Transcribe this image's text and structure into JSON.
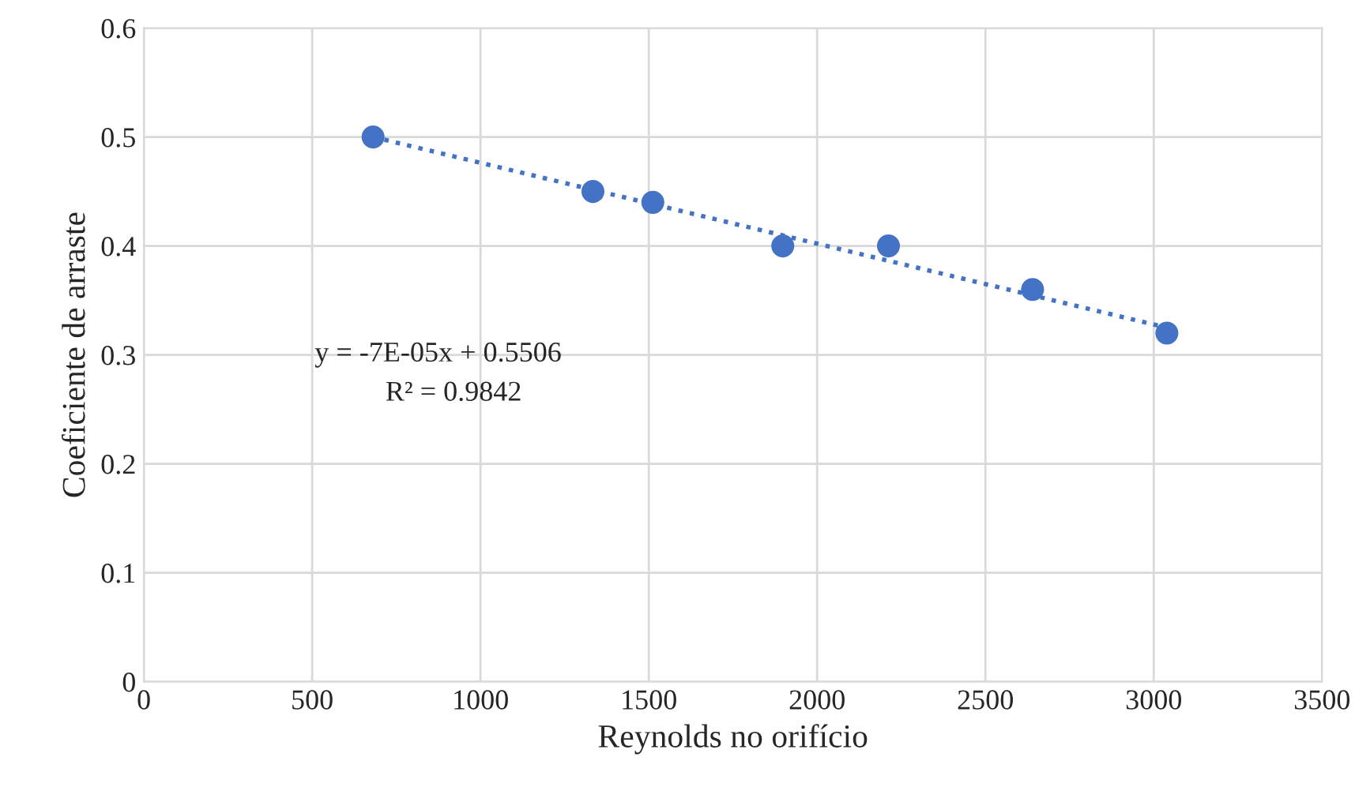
{
  "chart_data": {
    "type": "scatter",
    "xlabel": "Reynolds no orifício",
    "ylabel": "Coeficiente de arraste",
    "series": [
      {
        "color": "#4472c4",
        "marker": "circle",
        "x": [
          681,
          1334,
          1512,
          1898,
          2212,
          2640,
          3039
        ],
        "values": [
          0.5,
          0.45,
          0.44,
          0.4,
          0.4,
          0.36,
          0.32
        ]
      },
      {
        "type": "line",
        "color": "#4472c4",
        "line_style": "dotted",
        "x": [
          681,
          3039
        ],
        "values": [
          0.5,
          0.325
        ]
      }
    ],
    "annotations": [
      "y = -7E-05x + 0.5506",
      "R² = 0.9842"
    ],
    "xlim": [
      0,
      3500
    ],
    "xticks": [
      0,
      500,
      1000,
      1500,
      2000,
      2500,
      3000,
      3500
    ],
    "ylim": [
      0,
      0.6
    ],
    "yticks": [
      {
        "value": 0,
        "label": "0"
      },
      0.1,
      0.2,
      0.3,
      0.4,
      0.5,
      0.6
    ],
    "grid": true,
    "legend": false
  }
}
